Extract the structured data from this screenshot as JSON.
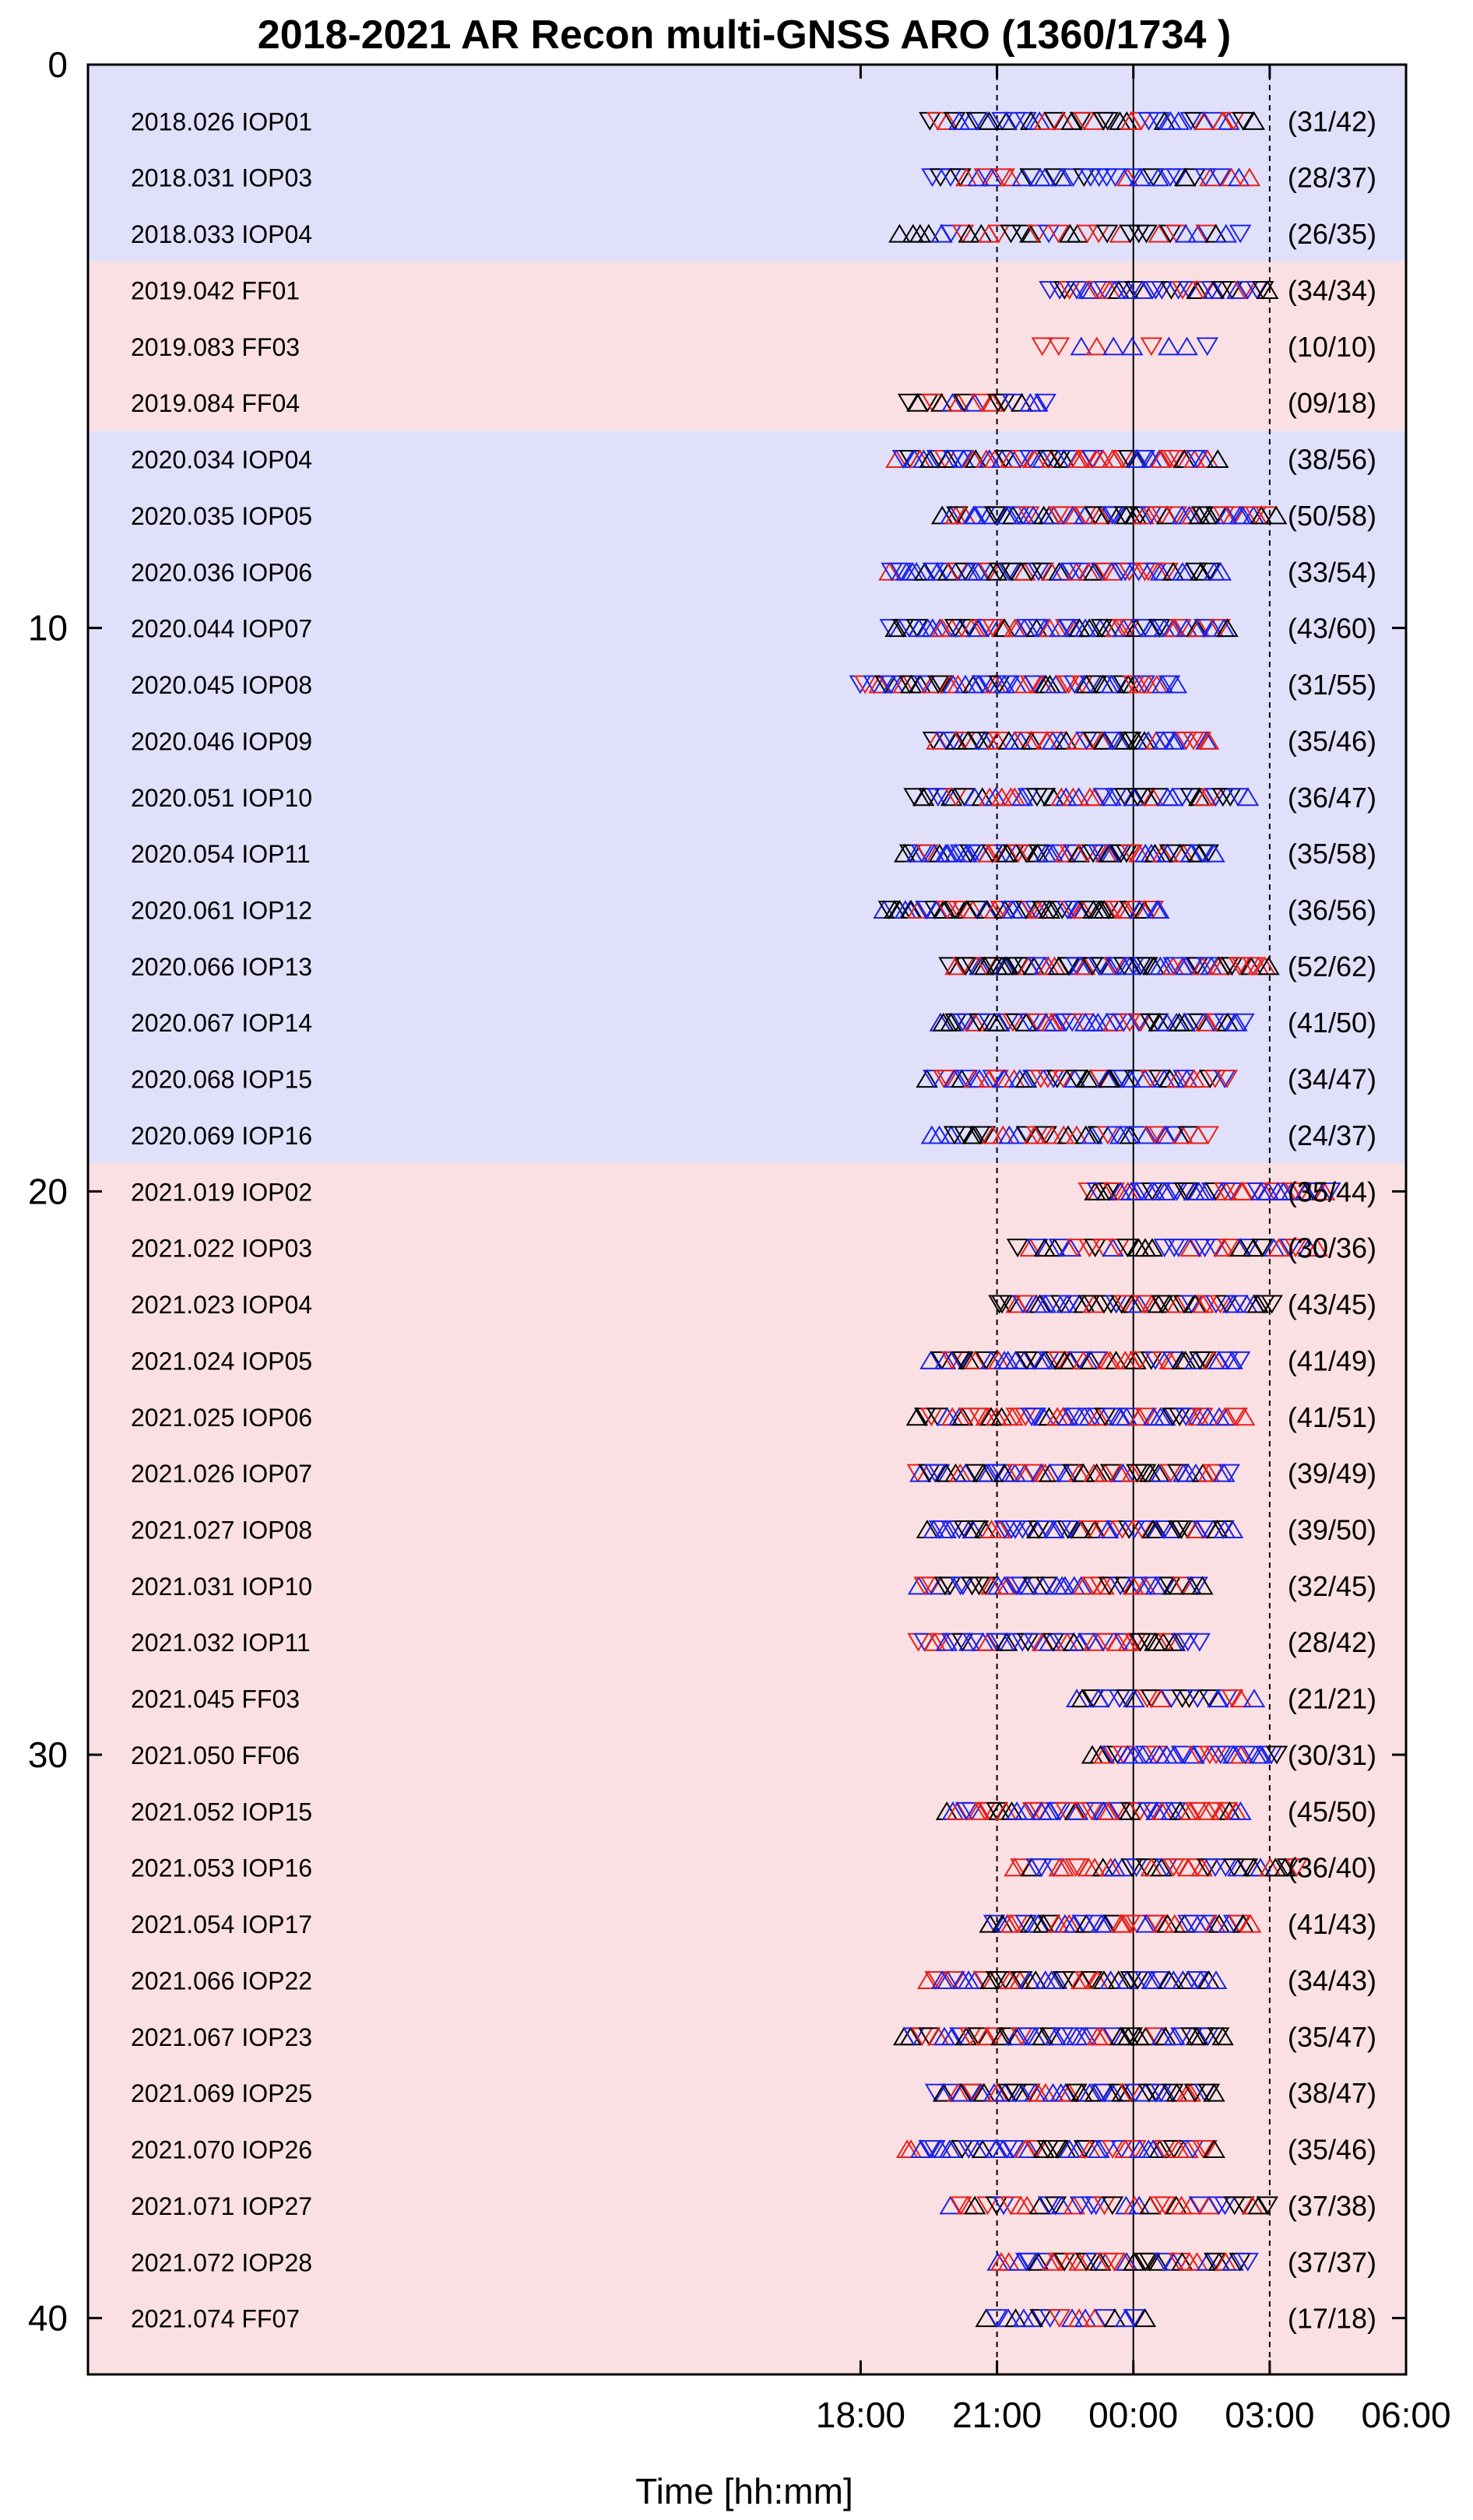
{
  "chart_data": {
    "type": "scatter",
    "title": "2018-2021 AR Recon multi-GNSS ARO (1360/1734 )",
    "xlabel": "Time [hh:mm]",
    "ylabel": "",
    "x_unit": "hours relative to 00:00 UTC",
    "xlim": [
      -23,
      6
    ],
    "ylim": [
      0,
      41
    ],
    "y_reversed": true,
    "x_ticks": [
      {
        "value": 18,
        "label": "18:00"
      },
      {
        "value": 21,
        "label": "21:00"
      },
      {
        "value": 0,
        "label": "00:00"
      },
      {
        "value": 3,
        "label": "03:00"
      },
      {
        "value": 6,
        "label": "06:00"
      }
    ],
    "y_ticks": [
      {
        "value": 0,
        "label": "0"
      },
      {
        "value": 10,
        "label": "10"
      },
      {
        "value": 20,
        "label": "20"
      },
      {
        "value": 30,
        "label": "30"
      },
      {
        "value": 40,
        "label": "40"
      }
    ],
    "reference_lines": [
      {
        "x": "21:00",
        "style": "dashed"
      },
      {
        "x": "00:00",
        "style": "solid"
      },
      {
        "x": "03:00",
        "style": "dashed"
      }
    ],
    "background_bands": [
      {
        "rows": [
          1,
          3
        ],
        "color": "#e0e0fa"
      },
      {
        "rows": [
          4,
          6
        ],
        "color": "#fae0e2"
      },
      {
        "rows": [
          7,
          19
        ],
        "color": "#e0e0fa"
      },
      {
        "rows": [
          20,
          40
        ],
        "color": "#fae0e2"
      }
    ],
    "marker_colors": {
      "black": "#000000",
      "red": "#e8201c",
      "blue": "#1c24e8"
    },
    "marker_shapes": {
      "up": "triangle-up",
      "down": "triangle-down"
    },
    "rows": [
      {
        "y": 1,
        "label": "2018.026 IOP01",
        "count": "(31/42)",
        "start": 19.5,
        "end": 2.6
      },
      {
        "y": 2,
        "label": "2018.031 IOP03",
        "count": "(28/37)",
        "start": 19.6,
        "end": 2.5
      },
      {
        "y": 3,
        "label": "2018.033 IOP04",
        "count": "(26/35)",
        "start": 18.9,
        "end": 2.3
      },
      {
        "y": 4,
        "label": "2019.042 FF01",
        "count": "(34/34)",
        "start": 22.2,
        "end": 3.0
      },
      {
        "y": 5,
        "label": "2019.083 FF03",
        "count": "(10/10)",
        "start": 22.0,
        "end": 1.6
      },
      {
        "y": 6,
        "label": "2019.084 FF04",
        "count": "(09/18)",
        "start": 19.1,
        "end": 22.1
      },
      {
        "y": 7,
        "label": "2020.034 IOP04",
        "count": "(38/56)",
        "start": 18.8,
        "end": 1.8
      },
      {
        "y": 8,
        "label": "2020.035 IOP05",
        "count": "(50/58)",
        "start": 19.8,
        "end": 3.1
      },
      {
        "y": 9,
        "label": "2020.036 IOP06",
        "count": "(33/54)",
        "start": 18.6,
        "end": 1.9
      },
      {
        "y": 10,
        "label": "2020.044 IOP07",
        "count": "(43/60)",
        "start": 18.7,
        "end": 2.1
      },
      {
        "y": 11,
        "label": "2020.045 IOP08",
        "count": "(31/55)",
        "start": 18.0,
        "end": 0.9
      },
      {
        "y": 12,
        "label": "2020.046 IOP09",
        "count": "(35/46)",
        "start": 19.6,
        "end": 1.7
      },
      {
        "y": 13,
        "label": "2020.051 IOP10",
        "count": "(36/47)",
        "start": 19.2,
        "end": 2.5
      },
      {
        "y": 14,
        "label": "2020.054 IOP11",
        "count": "(35/58)",
        "start": 19.0,
        "end": 1.8
      },
      {
        "y": 15,
        "label": "2020.061 IOP12",
        "count": "(36/56)",
        "start": 18.5,
        "end": 0.6
      },
      {
        "y": 16,
        "label": "2020.066 IOP13",
        "count": "(52/62)",
        "start": 20.0,
        "end": 3.0
      },
      {
        "y": 17,
        "label": "2020.067 IOP14",
        "count": "(41/50)",
        "start": 19.7,
        "end": 2.4
      },
      {
        "y": 18,
        "label": "2020.068 IOP15",
        "count": "(34/47)",
        "start": 19.5,
        "end": 2.1
      },
      {
        "y": 19,
        "label": "2020.069 IOP16",
        "count": "(24/37)",
        "start": 19.6,
        "end": 1.6
      },
      {
        "y": 20,
        "label": "2021.019 IOP02",
        "count": "(35/44)",
        "start": 23.0,
        "end": 4.3
      },
      {
        "y": 21,
        "label": "2021.022 IOP03",
        "count": "(30/36)",
        "start": 21.5,
        "end": 4.0
      },
      {
        "y": 22,
        "label": "2021.023 IOP04",
        "count": "(43/45)",
        "start": 21.0,
        "end": 3.0
      },
      {
        "y": 23,
        "label": "2021.024 IOP05",
        "count": "(41/49)",
        "start": 19.6,
        "end": 2.3
      },
      {
        "y": 24,
        "label": "2021.025 IOP06",
        "count": "(41/51)",
        "start": 19.3,
        "end": 2.4
      },
      {
        "y": 25,
        "label": "2021.026 IOP07",
        "count": "(39/49)",
        "start": 19.2,
        "end": 2.1
      },
      {
        "y": 26,
        "label": "2021.027 IOP08",
        "count": "(39/50)",
        "start": 19.5,
        "end": 2.2
      },
      {
        "y": 27,
        "label": "2021.031 IOP10",
        "count": "(32/45)",
        "start": 19.3,
        "end": 1.5
      },
      {
        "y": 28,
        "label": "2021.032 IOP11",
        "count": "(28/42)",
        "start": 19.3,
        "end": 1.4
      },
      {
        "y": 29,
        "label": "2021.045 FF03",
        "count": "(21/21)",
        "start": 22.7,
        "end": 2.6
      },
      {
        "y": 30,
        "label": "2021.050 FF06",
        "count": "(30/31)",
        "start": 23.1,
        "end": 3.2
      },
      {
        "y": 31,
        "label": "2021.052 IOP15",
        "count": "(45/50)",
        "start": 19.9,
        "end": 2.4
      },
      {
        "y": 32,
        "label": "2021.053 IOP16",
        "count": "(36/40)",
        "start": 21.4,
        "end": 3.6
      },
      {
        "y": 33,
        "label": "2021.054 IOP17",
        "count": "(41/43)",
        "start": 20.8,
        "end": 2.6
      },
      {
        "y": 34,
        "label": "2021.066 IOP22",
        "count": "(34/43)",
        "start": 19.5,
        "end": 1.8
      },
      {
        "y": 35,
        "label": "2021.067 IOP23",
        "count": "(35/47)",
        "start": 18.9,
        "end": 2.0
      },
      {
        "y": 36,
        "label": "2021.069 IOP25",
        "count": "(38/47)",
        "start": 19.7,
        "end": 1.8
      },
      {
        "y": 37,
        "label": "2021.070 IOP26",
        "count": "(35/46)",
        "start": 19.0,
        "end": 1.8
      },
      {
        "y": 38,
        "label": "2021.071 IOP27",
        "count": "(37/38)",
        "start": 20.0,
        "end": 3.0
      },
      {
        "y": 39,
        "label": "2021.072 IOP28",
        "count": "(37/37)",
        "start": 21.0,
        "end": 2.5
      },
      {
        "y": 40,
        "label": "2021.074 FF07",
        "count": "(17/18)",
        "start": 20.8,
        "end": 0.2
      }
    ]
  }
}
